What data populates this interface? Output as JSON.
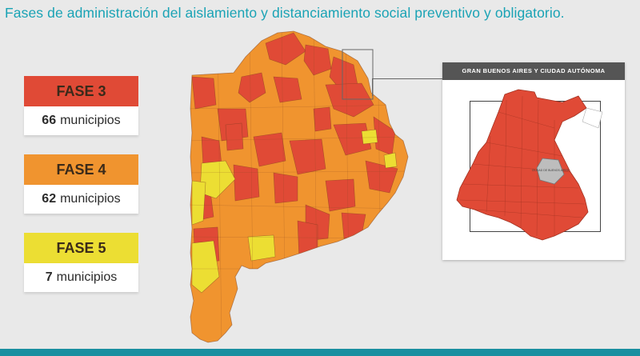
{
  "title": "Fases de administración del aislamiento y distanciamiento social preventivo y obligatorio.",
  "legend": [
    {
      "phase": "FASE 3",
      "count": "66",
      "unit": "municipios",
      "color": "#e04a36"
    },
    {
      "phase": "FASE 4",
      "count": "62",
      "unit": "municipios",
      "color": "#f0942f"
    },
    {
      "phase": "FASE 5",
      "count": "7",
      "unit": "municipios",
      "color": "#ecde33"
    }
  ],
  "inset": {
    "header": "GRAN BUENOS AIRES Y CIUDAD AUTÓNOMA",
    "caba_label": "CIUDAD DE BUENOS AIRES"
  },
  "colors": {
    "fase3": "#e04a36",
    "fase4": "#f0942f",
    "fase5": "#ecde33",
    "caba": "#bdbdbd",
    "accent": "#1aa3b5"
  }
}
